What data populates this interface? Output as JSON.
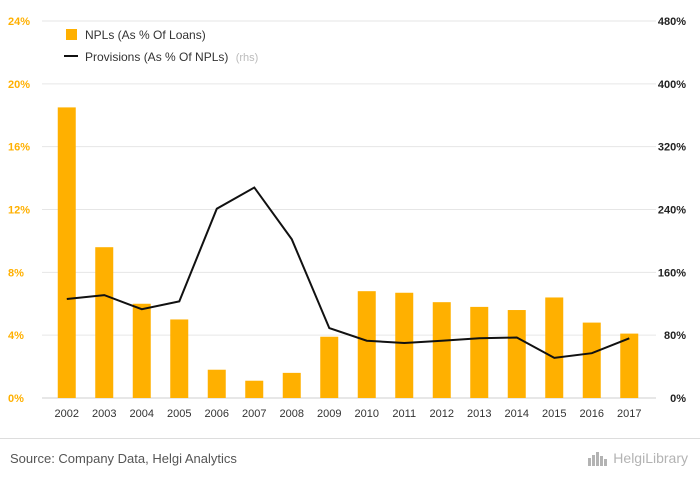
{
  "chart_data": {
    "type": "bar",
    "categories": [
      "2002",
      "2003",
      "2004",
      "2005",
      "2006",
      "2007",
      "2008",
      "2009",
      "2010",
      "2011",
      "2012",
      "2013",
      "2014",
      "2015",
      "2016",
      "2017"
    ],
    "series": [
      {
        "name": "NPLs (As % Of Loans)",
        "type": "bar",
        "axis": "left",
        "values": [
          18.5,
          9.6,
          6.0,
          5.0,
          1.8,
          1.1,
          1.6,
          3.9,
          6.8,
          6.7,
          6.1,
          5.8,
          5.6,
          6.4,
          4.8,
          4.1
        ]
      },
      {
        "name": "Provisions (As % Of NPLs)",
        "name_note": "(rhs)",
        "type": "line",
        "axis": "right",
        "values": [
          126,
          131,
          113,
          123,
          241,
          268,
          202,
          89,
          73,
          70,
          73,
          76,
          77,
          51,
          57,
          76
        ]
      }
    ],
    "y_left": {
      "min": 0,
      "max": 24,
      "ticks": [
        0,
        4,
        8,
        12,
        16,
        20,
        24
      ],
      "tick_labels": [
        "0%",
        "4%",
        "8%",
        "12%",
        "16%",
        "20%",
        "24%"
      ]
    },
    "y_right": {
      "min": 0,
      "max": 480,
      "ticks": [
        0,
        80,
        160,
        240,
        320,
        400,
        480
      ],
      "tick_labels": [
        "0%",
        "80%",
        "160%",
        "240%",
        "320%",
        "400%",
        "480%"
      ]
    },
    "grid": true,
    "legend_position": "top-left",
    "colors": {
      "bar": "#ffb000",
      "line": "#111111",
      "left_axis_text": "#ffb000",
      "grid": "#e6e6e6"
    }
  },
  "footer": {
    "source": "Source: Company Data, Helgi Analytics",
    "brand": "HelgiLibrary",
    "brand_icon": "city-skyline-icon"
  }
}
